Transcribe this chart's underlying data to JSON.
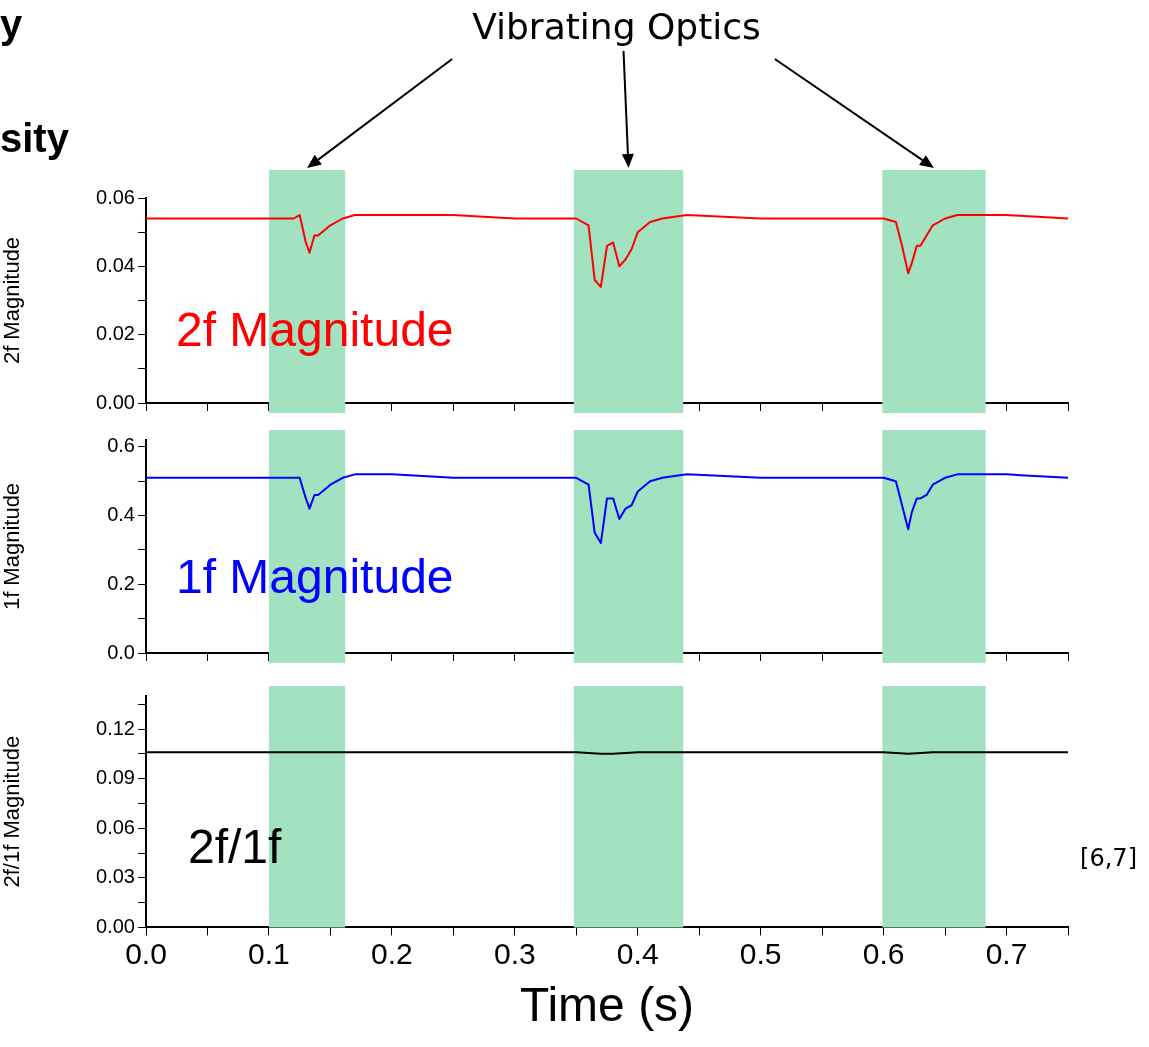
{
  "chart_data": [
    {
      "type": "line",
      "ylabel": "2f Magnitude",
      "annotations": [
        "Vibrating Optics",
        "y",
        "sity"
      ],
      "xlim": [
        0,
        0.75
      ],
      "xticks": [
        0,
        {
          "value": 0.05,
          "label": null
        },
        0.1,
        {
          "value": 0.15,
          "label": null
        },
        0.2,
        {
          "value": 0.25,
          "label": null
        },
        0.3,
        {
          "value": 0.35,
          "label": null
        },
        0.4,
        {
          "value": 0.45,
          "label": null
        },
        0.5,
        {
          "value": 0.55,
          "label": null
        },
        0.6,
        {
          "value": 0.65,
          "label": null
        },
        0.7,
        {
          "value": 0.75,
          "label": null
        }
      ],
      "ylim": [
        0,
        0.06
      ],
      "yticks": [
        {
          "value": 0,
          "label": "0.00"
        },
        {
          "value": 0.01,
          "label": null
        },
        {
          "value": 0.02,
          "label": "0.02"
        },
        {
          "value": 0.03,
          "label": null
        },
        {
          "value": 0.04,
          "label": "0.04"
        },
        {
          "value": 0.05,
          "label": null
        },
        {
          "value": 0.06,
          "label": "0.06"
        }
      ],
      "tick_labels": "y",
      "grid": false,
      "legend": false,
      "marker": "none",
      "line_style": "solid",
      "bands": [
        {
          "axis": "x",
          "from": 0.1,
          "to": 0.162,
          "color": "#a2e2c1"
        },
        {
          "axis": "x",
          "from": 0.348,
          "to": 0.437,
          "color": "#a2e2c1"
        },
        {
          "axis": "x",
          "from": 0.599,
          "to": 0.683,
          "color": "#a2e2c1"
        }
      ],
      "x": [
        0,
        0.05,
        0.1,
        0.12,
        0.125,
        0.13,
        0.133,
        0.137,
        0.14,
        0.15,
        0.16,
        0.17,
        0.2,
        0.25,
        0.3,
        0.35,
        0.36,
        0.365,
        0.37,
        0.375,
        0.38,
        0.385,
        0.39,
        0.395,
        0.4,
        0.41,
        0.42,
        0.44,
        0.5,
        0.55,
        0.6,
        0.61,
        0.615,
        0.62,
        0.623,
        0.627,
        0.63,
        0.635,
        0.64,
        0.65,
        0.66,
        0.68,
        0.7,
        0.75
      ],
      "series": [
        {
          "name": "2f Magnitude",
          "color": "#ff0000",
          "values": [
            0.054,
            0.054,
            0.054,
            0.054,
            0.055,
            0.047,
            0.044,
            0.049,
            0.049,
            0.052,
            0.054,
            0.055,
            0.055,
            0.055,
            0.054,
            0.054,
            0.052,
            0.036,
            0.034,
            0.046,
            0.047,
            0.04,
            0.042,
            0.045,
            0.05,
            0.053,
            0.054,
            0.055,
            0.054,
            0.054,
            0.054,
            0.053,
            0.046,
            0.038,
            0.041,
            0.046,
            0.046,
            0.049,
            0.052,
            0.054,
            0.055,
            0.055,
            0.055,
            0.054
          ]
        }
      ]
    },
    {
      "type": "line",
      "ylabel": "1f Magnitude",
      "xlim": [
        0,
        0.75
      ],
      "xticks": [
        0,
        {
          "value": 0.05,
          "label": null
        },
        0.1,
        {
          "value": 0.15,
          "label": null
        },
        0.2,
        {
          "value": 0.25,
          "label": null
        },
        0.3,
        {
          "value": 0.35,
          "label": null
        },
        0.4,
        {
          "value": 0.45,
          "label": null
        },
        0.5,
        {
          "value": 0.55,
          "label": null
        },
        0.6,
        {
          "value": 0.65,
          "label": null
        },
        0.7,
        {
          "value": 0.75,
          "label": null
        }
      ],
      "ylim": [
        0,
        0.62
      ],
      "yticks": [
        {
          "value": 0,
          "label": "0.0"
        },
        {
          "value": 0.1,
          "label": null
        },
        {
          "value": 0.2,
          "label": "0.2"
        },
        {
          "value": 0.3,
          "label": null
        },
        {
          "value": 0.4,
          "label": "0.4"
        },
        {
          "value": 0.5,
          "label": null
        },
        {
          "value": 0.6,
          "label": "0.6"
        }
      ],
      "tick_labels": "y",
      "grid": false,
      "legend": false,
      "marker": "none",
      "line_style": "solid",
      "bands": [
        {
          "axis": "x",
          "from": 0.1,
          "to": 0.162,
          "color": "#a2e2c1"
        },
        {
          "axis": "x",
          "from": 0.348,
          "to": 0.437,
          "color": "#a2e2c1"
        },
        {
          "axis": "x",
          "from": 0.599,
          "to": 0.683,
          "color": "#a2e2c1"
        }
      ],
      "x": [
        0,
        0.05,
        0.1,
        0.12,
        0.125,
        0.13,
        0.133,
        0.137,
        0.14,
        0.15,
        0.16,
        0.17,
        0.2,
        0.25,
        0.3,
        0.35,
        0.36,
        0.365,
        0.37,
        0.375,
        0.38,
        0.385,
        0.39,
        0.395,
        0.4,
        0.41,
        0.42,
        0.44,
        0.5,
        0.55,
        0.6,
        0.61,
        0.615,
        0.62,
        0.623,
        0.627,
        0.63,
        0.635,
        0.64,
        0.65,
        0.66,
        0.68,
        0.7,
        0.75
      ],
      "series": [
        {
          "name": "1f Magnitude",
          "color": "#0000ff",
          "values": [
            0.51,
            0.51,
            0.51,
            0.51,
            0.51,
            0.45,
            0.42,
            0.46,
            0.46,
            0.49,
            0.51,
            0.52,
            0.52,
            0.51,
            0.51,
            0.51,
            0.49,
            0.35,
            0.32,
            0.45,
            0.45,
            0.39,
            0.42,
            0.43,
            0.47,
            0.5,
            0.51,
            0.52,
            0.51,
            0.51,
            0.51,
            0.5,
            0.43,
            0.36,
            0.41,
            0.45,
            0.45,
            0.46,
            0.49,
            0.51,
            0.52,
            0.52,
            0.52,
            0.51
          ]
        }
      ]
    },
    {
      "type": "line",
      "xlabel": "Time (s)",
      "ylabel": "2f/1f Magnitude",
      "annotations": [
        "[6,7]"
      ],
      "xlim": [
        0,
        0.75
      ],
      "xticks": [
        {
          "value": 0,
          "label": "0.0"
        },
        {
          "value": 0.05,
          "label": null
        },
        0.1,
        {
          "value": 0.15,
          "label": null
        },
        0.2,
        {
          "value": 0.25,
          "label": null
        },
        0.3,
        {
          "value": 0.35,
          "label": null
        },
        0.4,
        {
          "value": 0.45,
          "label": null
        },
        0.5,
        {
          "value": 0.55,
          "label": null
        },
        0.6,
        {
          "value": 0.65,
          "label": null
        },
        0.7,
        {
          "value": 0.75,
          "label": null
        }
      ],
      "ylim": [
        0,
        0.14
      ],
      "yticks": [
        {
          "value": 0,
          "label": "0.00"
        },
        {
          "value": 0.015,
          "label": null
        },
        {
          "value": 0.03,
          "label": "0.03"
        },
        {
          "value": 0.045,
          "label": null
        },
        {
          "value": 0.06,
          "label": "0.06"
        },
        {
          "value": 0.075,
          "label": null
        },
        {
          "value": 0.09,
          "label": "0.09"
        },
        {
          "value": 0.105,
          "label": null
        },
        {
          "value": 0.12,
          "label": "0.12"
        },
        {
          "value": 0.135,
          "label": null
        }
      ],
      "grid": false,
      "legend": false,
      "marker": "none",
      "line_style": "solid",
      "bands": [
        {
          "axis": "x",
          "from": 0.1,
          "to": 0.162,
          "color": "#a2e2c1"
        },
        {
          "axis": "x",
          "from": 0.348,
          "to": 0.437,
          "color": "#a2e2c1"
        },
        {
          "axis": "x",
          "from": 0.599,
          "to": 0.683,
          "color": "#a2e2c1"
        }
      ],
      "x": [
        0,
        0.05,
        0.1,
        0.15,
        0.2,
        0.25,
        0.3,
        0.35,
        0.37,
        0.38,
        0.4,
        0.45,
        0.5,
        0.55,
        0.6,
        0.62,
        0.64,
        0.7,
        0.75
      ],
      "series": [
        {
          "name": "2f/1f",
          "color": "#000000",
          "values": [
            0.106,
            0.106,
            0.106,
            0.106,
            0.106,
            0.106,
            0.106,
            0.106,
            0.105,
            0.105,
            0.106,
            0.106,
            0.106,
            0.106,
            0.106,
            0.105,
            0.106,
            0.106,
            0.106
          ]
        }
      ]
    }
  ]
}
